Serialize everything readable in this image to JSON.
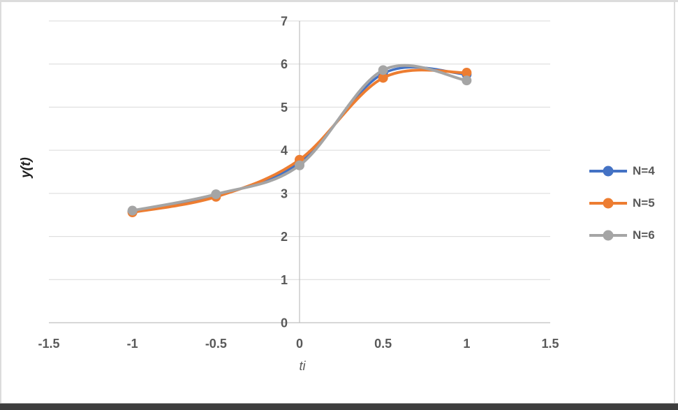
{
  "chart_data": {
    "type": "line",
    "title": "",
    "xlabel": "ti",
    "ylabel": "y(t)",
    "x": [
      -1,
      -0.5,
      0,
      0.5,
      1
    ],
    "series": [
      {
        "name": "N=4",
        "color": "#4472C4",
        "line_width": 3.5,
        "values": [
          2.58,
          2.95,
          3.72,
          5.78,
          5.76
        ]
      },
      {
        "name": "N=5",
        "color": "#ED7D31",
        "line_width": 4,
        "values": [
          2.56,
          2.92,
          3.78,
          5.68,
          5.8
        ]
      },
      {
        "name": "N=6",
        "color": "#A5A5A5",
        "line_width": 4,
        "values": [
          2.6,
          2.98,
          3.65,
          5.86,
          5.62
        ]
      }
    ],
    "xlim": [
      -1.5,
      1.5
    ],
    "ylim": [
      0,
      7
    ],
    "xticks": [
      "-1.5",
      "-1",
      "-0.5",
      "0",
      "0.5",
      "1",
      "1.5"
    ],
    "yticks": [
      "0",
      "1",
      "2",
      "3",
      "4",
      "5",
      "6",
      "7"
    ],
    "grid": "horizontal",
    "smooth": true,
    "markers": true,
    "marker_radius": 7,
    "legend_position": "right",
    "gridline_color": "#D9D9D9",
    "axis_color": "#BFBFBF",
    "tick_label_color": "#595959"
  }
}
